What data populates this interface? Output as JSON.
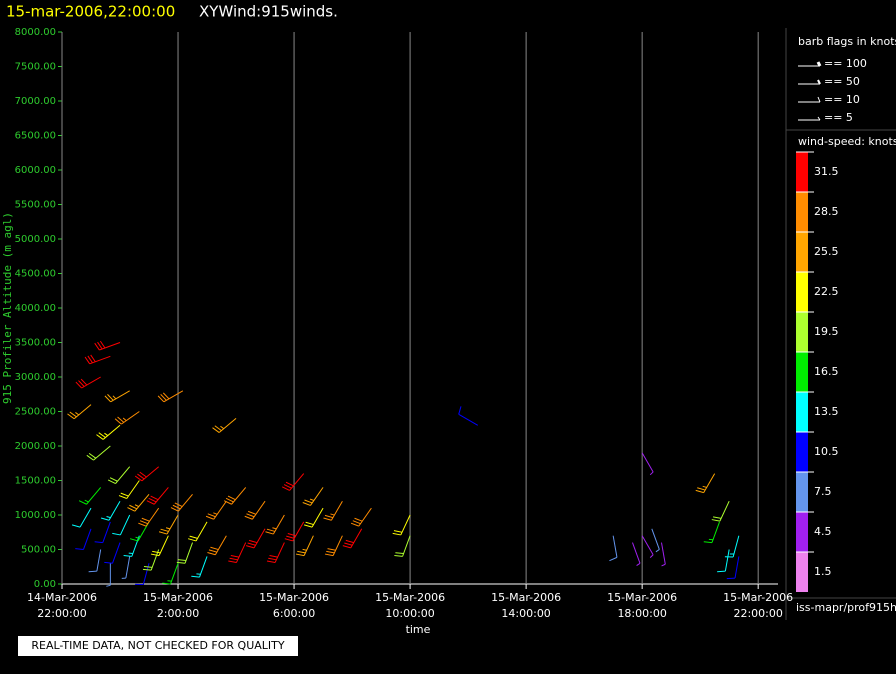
{
  "chart_data": {
    "type": "windbarb",
    "title": "15-mar-2006,22:00:00",
    "subtitle": "XYWind:915winds.",
    "y_label": "915 Profiler Altitude (m agl)",
    "x_label": "time",
    "note": "REAL-TIME DATA, NOT CHECKED FOR QUALITY",
    "source": "iss-mapr/prof915h",
    "ylim": [
      0,
      8000
    ],
    "yticks": [
      {
        "value": 0,
        "label": "0.00"
      },
      {
        "value": 500,
        "label": "500.00"
      },
      {
        "value": 1000,
        "label": "1000.00"
      },
      {
        "value": 1500,
        "label": "1500.00"
      },
      {
        "value": 2000,
        "label": "2000.00"
      },
      {
        "value": 2500,
        "label": "2500.00"
      },
      {
        "value": 3000,
        "label": "3000.00"
      },
      {
        "value": 3500,
        "label": "3500.00"
      },
      {
        "value": 4000,
        "label": "4000.00"
      },
      {
        "value": 4500,
        "label": "4500.00"
      },
      {
        "value": 5000,
        "label": "5000.00"
      },
      {
        "value": 5500,
        "label": "5500.00"
      },
      {
        "value": 6000,
        "label": "6000.00"
      },
      {
        "value": 6500,
        "label": "6500.00"
      },
      {
        "value": 7000,
        "label": "7000.00"
      },
      {
        "value": 7500,
        "label": "7500.00"
      },
      {
        "value": 8000,
        "label": "8000.00"
      }
    ],
    "xlim": [
      "2006-03-14T22:00",
      "2006-03-15T22:41"
    ],
    "xticks": [
      {
        "value": "2006-03-14T22:00",
        "label": [
          "14-Mar-2006",
          "22:00:00"
        ]
      },
      {
        "value": "2006-03-15T02:00",
        "label": [
          "15-Mar-2006",
          "2:00:00"
        ]
      },
      {
        "value": "2006-03-15T06:00",
        "label": [
          "15-Mar-2006",
          "6:00:00"
        ]
      },
      {
        "value": "2006-03-15T10:00",
        "label": [
          "15-Mar-2006",
          "10:00:00"
        ]
      },
      {
        "value": "2006-03-15T14:00",
        "label": [
          "15-Mar-2006",
          "14:00:00"
        ]
      },
      {
        "value": "2006-03-15T18:00",
        "label": [
          "15-Mar-2006",
          "18:00:00"
        ]
      },
      {
        "value": "2006-03-15T22:00",
        "label": [
          "15-Mar-2006",
          "22:00:00"
        ]
      }
    ],
    "barb_legend": {
      "title": "barb flags in knots",
      "labels": [
        "== 100",
        "== 50",
        "== 10",
        "== 5"
      ]
    },
    "colorbar": {
      "title": "wind-speed: knots",
      "labels": [
        31.5,
        28.5,
        25.5,
        22.5,
        19.5,
        16.5,
        13.5,
        10.5,
        7.5,
        4.5,
        1.5
      ],
      "colors": [
        "#ff0000",
        "#ff8c00",
        "#ffa500",
        "#ffff00",
        "#adff2f",
        "#00ee00",
        "#00ffff",
        "#0000ff",
        "#6495ed",
        "#a020f0",
        "#ee82ee"
      ]
    },
    "barbs": {
      "x": [
        "2006-03-14T23:00",
        "2006-03-14T23:00",
        "2006-03-14T23:00",
        "2006-03-14T23:20",
        "2006-03-14T23:20",
        "2006-03-14T23:20",
        "2006-03-14T23:40",
        "2006-03-14T23:40",
        "2006-03-14T23:40",
        "2006-03-14T23:40",
        "2006-03-15T00:00",
        "2006-03-15T00:00",
        "2006-03-15T00:00",
        "2006-03-15T00:00",
        "2006-03-15T00:20",
        "2006-03-15T00:20",
        "2006-03-15T00:20",
        "2006-03-15T00:20",
        "2006-03-15T00:40",
        "2006-03-15T00:40",
        "2006-03-15T00:40",
        "2006-03-15T01:00",
        "2006-03-15T01:00",
        "2006-03-15T01:00",
        "2006-03-15T01:20",
        "2006-03-15T01:20",
        "2006-03-15T01:20",
        "2006-03-15T01:40",
        "2006-03-15T01:40",
        "2006-03-15T02:00",
        "2006-03-15T02:00",
        "2006-03-15T02:10",
        "2006-03-15T02:30",
        "2006-03-15T02:30",
        "2006-03-15T03:00",
        "2006-03-15T03:00",
        "2006-03-15T03:40",
        "2006-03-15T03:40",
        "2006-03-15T04:00",
        "2006-03-15T04:20",
        "2006-03-15T04:20",
        "2006-03-15T05:00",
        "2006-03-15T05:00",
        "2006-03-15T05:40",
        "2006-03-15T05:40",
        "2006-03-15T06:20",
        "2006-03-15T06:20",
        "2006-03-15T06:40",
        "2006-03-15T07:00",
        "2006-03-15T07:00",
        "2006-03-15T07:40",
        "2006-03-15T07:40",
        "2006-03-15T08:20",
        "2006-03-15T08:40",
        "2006-03-15T10:00",
        "2006-03-15T10:00",
        "2006-03-15T12:20",
        "2006-03-15T17:00",
        "2006-03-15T17:40",
        "2006-03-15T18:00",
        "2006-03-15T18:00",
        "2006-03-15T18:20",
        "2006-03-15T18:40",
        "2006-03-15T20:30",
        "2006-03-15T20:40",
        "2006-03-15T21:00",
        "2006-03-15T21:00",
        "2006-03-15T21:20",
        "2006-03-15T21:20"
      ],
      "y": [
        800,
        1100,
        2600,
        500,
        1400,
        3000,
        300,
        900,
        2000,
        3300,
        600,
        1200,
        2300,
        3500,
        400,
        1000,
        1700,
        2800,
        700,
        1500,
        2500,
        300,
        900,
        1300,
        500,
        1100,
        1700,
        700,
        1400,
        300,
        1000,
        2800,
        600,
        1300,
        400,
        900,
        1200,
        700,
        2400,
        600,
        1400,
        800,
        1200,
        600,
        1000,
        900,
        1600,
        700,
        1100,
        1400,
        700,
        1200,
        800,
        1100,
        700,
        1000,
        2300,
        700,
        600,
        1900,
        700,
        800,
        600,
        1600,
        900,
        500,
        1200,
        700,
        400
      ],
      "speed": [
        9,
        12,
        24,
        8,
        15,
        30,
        6,
        11,
        20,
        32,
        10,
        14,
        23,
        31,
        7,
        12,
        18,
        26,
        13,
        21,
        27,
        9,
        16,
        24,
        20,
        28,
        30,
        22,
        31,
        17,
        26,
        28,
        19,
        29,
        14,
        22,
        27,
        29,
        25,
        30,
        28,
        31,
        29,
        30,
        27,
        31,
        30,
        24,
        22,
        26,
        29,
        27,
        30,
        28,
        20,
        22,
        10,
        8,
        5,
        5,
        4,
        6,
        5,
        24,
        16,
        12,
        20,
        14,
        11
      ],
      "direction": [
        200,
        210,
        230,
        190,
        220,
        240,
        180,
        200,
        230,
        250,
        200,
        210,
        230,
        250,
        190,
        205,
        220,
        240,
        200,
        215,
        235,
        195,
        210,
        220,
        200,
        215,
        230,
        205,
        220,
        200,
        210,
        240,
        200,
        220,
        200,
        210,
        215,
        210,
        230,
        205,
        220,
        210,
        215,
        205,
        210,
        210,
        220,
        205,
        210,
        215,
        205,
        210,
        210,
        215,
        200,
        205,
        300,
        170,
        160,
        150,
        150,
        160,
        170,
        210,
        200,
        190,
        205,
        195,
        190
      ]
    }
  }
}
